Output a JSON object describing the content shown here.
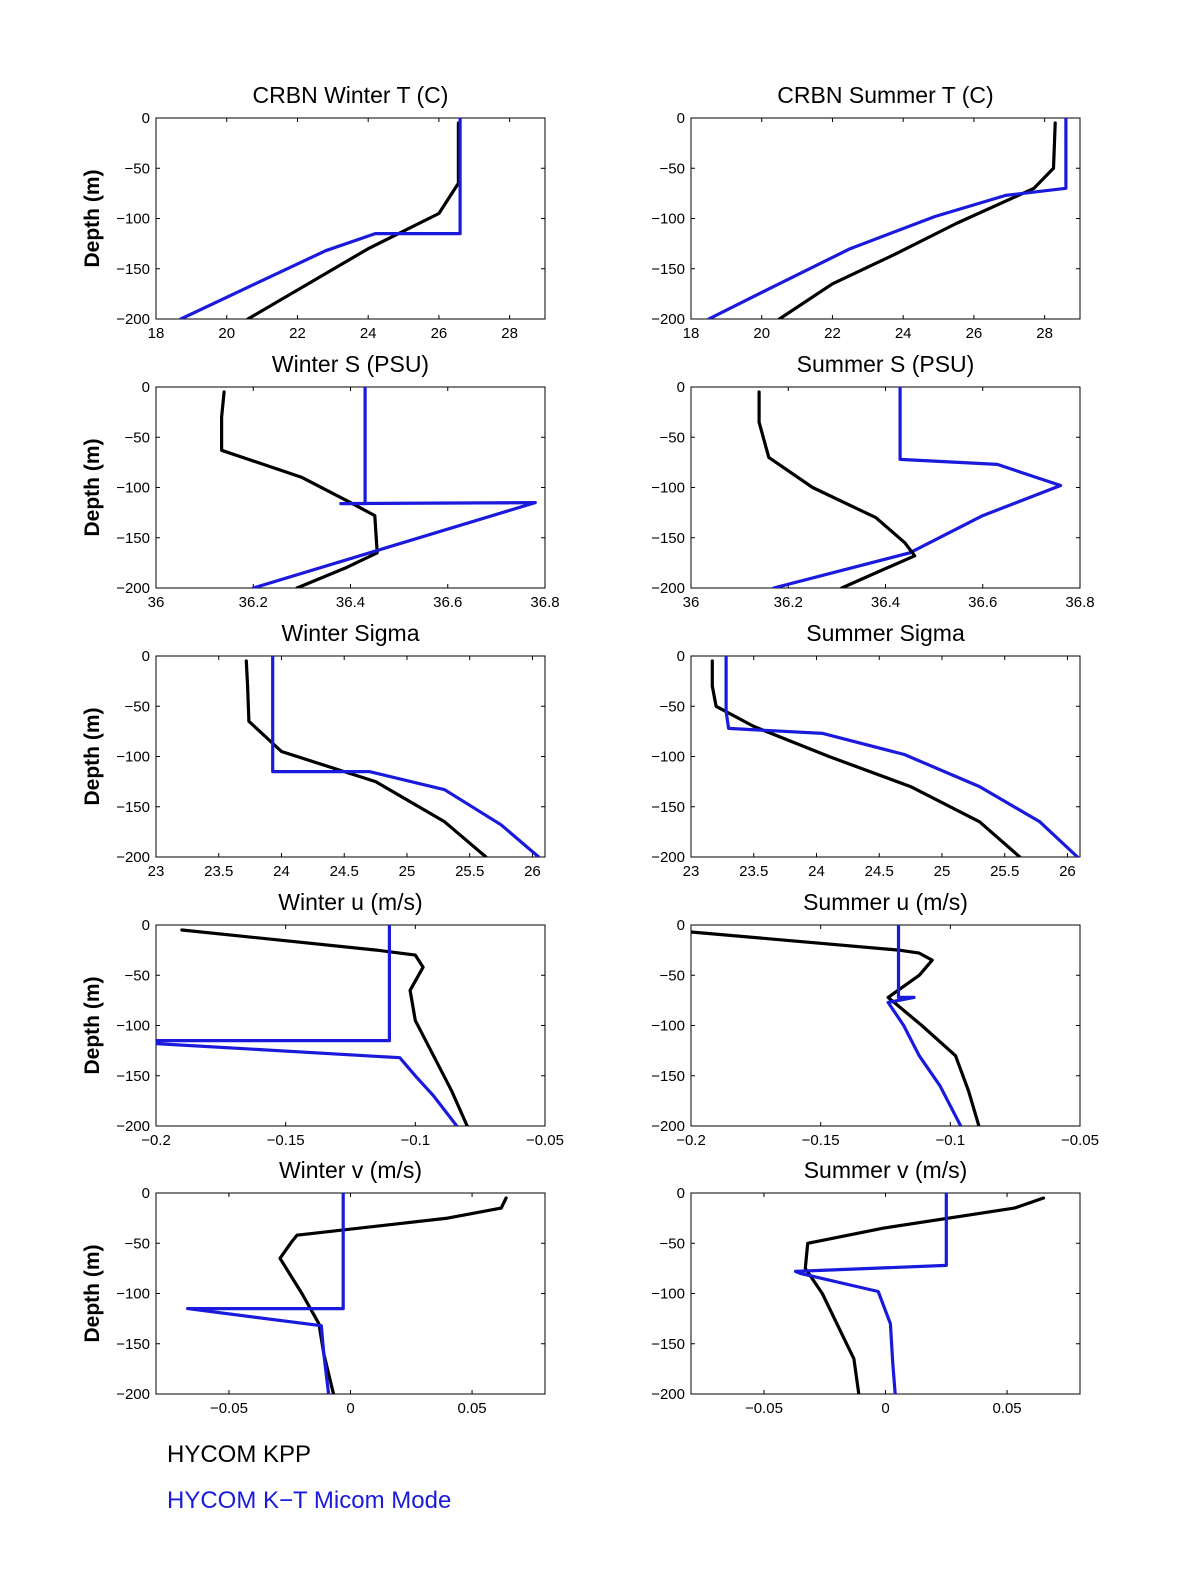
{
  "colors": {
    "kpp": "#000000",
    "micom": "#1a1adc",
    "axis": "#000000",
    "background": "#ffffff"
  },
  "legend": [
    {
      "label": "HYCOM KPP",
      "color": "#000000"
    },
    {
      "label": "HYCOM K−T Micom Mode",
      "color": "#1a1adc"
    }
  ],
  "chart_data": [
    {
      "type": "line",
      "title": "CRBN Winter T (C)",
      "ylabel": "Depth (m)",
      "xlim": [
        18,
        29
      ],
      "ylim": [
        -200,
        0
      ],
      "xticks": [
        18,
        20,
        22,
        24,
        26,
        28
      ],
      "xtick_labels": [
        "18",
        "20",
        "22",
        "24",
        "26",
        "28"
      ],
      "yticks": [
        0,
        -50,
        -100,
        -150,
        -200
      ],
      "ytick_labels": [
        "0",
        "−50",
        "−100",
        "−150",
        "−200"
      ],
      "series": [
        {
          "name": "HYCOM KPP",
          "color": "#000000",
          "x": [
            26.55,
            26.55,
            26.0,
            24.0,
            20.6
          ],
          "y": [
            -5,
            -65,
            -95,
            -130,
            -200
          ]
        },
        {
          "name": "HYCOM K−T Micom Mode",
          "color": "#1a1adc",
          "x": [
            26.6,
            26.6,
            24.2,
            22.8,
            20.5,
            18.7
          ],
          "y": [
            0,
            -115,
            -115,
            -132,
            -170,
            -200
          ]
        }
      ]
    },
    {
      "type": "line",
      "title": "CRBN Summer T (C)",
      "ylabel": "",
      "xlim": [
        18,
        29
      ],
      "ylim": [
        -200,
        0
      ],
      "xticks": [
        18,
        20,
        22,
        24,
        26,
        28
      ],
      "xtick_labels": [
        "18",
        "20",
        "22",
        "24",
        "26",
        "28"
      ],
      "yticks": [
        0,
        -50,
        -100,
        -150,
        -200
      ],
      "ytick_labels": [
        "0",
        "−50",
        "−100",
        "−150",
        "−200"
      ],
      "series": [
        {
          "name": "HYCOM KPP",
          "color": "#000000",
          "x": [
            28.3,
            28.25,
            27.7,
            25.5,
            23.8,
            22.0,
            20.5
          ],
          "y": [
            -5,
            -50,
            -70,
            -105,
            -135,
            -165,
            -200
          ]
        },
        {
          "name": "HYCOM K−T Micom Mode",
          "color": "#1a1adc",
          "x": [
            28.6,
            28.6,
            26.9,
            24.9,
            22.5,
            20.2,
            18.5
          ],
          "y": [
            0,
            -70,
            -77,
            -98,
            -130,
            -170,
            -200
          ]
        }
      ]
    },
    {
      "type": "line",
      "title": "Winter S (PSU)",
      "ylabel": "Depth (m)",
      "xlim": [
        36,
        36.8
      ],
      "ylim": [
        -200,
        0
      ],
      "xticks": [
        36,
        36.2,
        36.4,
        36.6,
        36.8
      ],
      "xtick_labels": [
        "36",
        "36.2",
        "36.4",
        "36.6",
        "36.8"
      ],
      "yticks": [
        0,
        -50,
        -100,
        -150,
        -200
      ],
      "ytick_labels": [
        "0",
        "−50",
        "−100",
        "−150",
        "−200"
      ],
      "series": [
        {
          "name": "HYCOM KPP",
          "color": "#000000",
          "x": [
            36.14,
            36.135,
            36.135,
            36.3,
            36.4,
            36.45,
            36.455,
            36.39,
            36.29
          ],
          "y": [
            -5,
            -30,
            -63,
            -90,
            -115,
            -128,
            -165,
            -180,
            -200
          ]
        },
        {
          "name": "HYCOM K−T Micom Mode",
          "color": "#1a1adc",
          "x": [
            36.43,
            36.43,
            36.38,
            36.78,
            36.2
          ],
          "y": [
            0,
            -116,
            -116,
            -115,
            -200
          ]
        }
      ]
    },
    {
      "type": "line",
      "title": "Summer S (PSU)",
      "ylabel": "",
      "xlim": [
        36,
        36.8
      ],
      "ylim": [
        -200,
        0
      ],
      "xticks": [
        36,
        36.2,
        36.4,
        36.6,
        36.8
      ],
      "xtick_labels": [
        "36",
        "36.2",
        "36.4",
        "36.6",
        "36.8"
      ],
      "yticks": [
        0,
        -50,
        -100,
        -150,
        -200
      ],
      "ytick_labels": [
        "0",
        "−50",
        "−100",
        "−150",
        "−200"
      ],
      "series": [
        {
          "name": "HYCOM K−T Micom Mode",
          "color": "#1a1adc",
          "x": [
            36.43,
            36.43,
            36.63,
            36.76,
            36.6,
            36.45,
            36.17
          ],
          "y": [
            0,
            -72,
            -77,
            -98,
            -128,
            -165,
            -200
          ]
        },
        {
          "name": "HYCOM KPP",
          "color": "#000000",
          "x": [
            36.14,
            36.14,
            36.16,
            36.25,
            36.38,
            36.44,
            36.46,
            36.38,
            36.31
          ],
          "y": [
            -5,
            -35,
            -70,
            -100,
            -130,
            -155,
            -168,
            -185,
            -200
          ]
        }
      ]
    },
    {
      "type": "line",
      "title": "Winter Sigma",
      "ylabel": "Depth (m)",
      "xlim": [
        23,
        26.1
      ],
      "ylim": [
        -200,
        0
      ],
      "xticks": [
        23,
        23.5,
        24,
        24.5,
        25,
        25.5,
        26
      ],
      "xtick_labels": [
        "23",
        "23.5",
        "24",
        "24.5",
        "25",
        "25.5",
        "26"
      ],
      "yticks": [
        0,
        -50,
        -100,
        -150,
        -200
      ],
      "ytick_labels": [
        "0",
        "−50",
        "−100",
        "−150",
        "−200"
      ],
      "series": [
        {
          "name": "HYCOM KPP",
          "color": "#000000",
          "x": [
            23.72,
            23.73,
            23.74,
            24.0,
            24.5,
            24.75,
            25.3,
            25.63
          ],
          "y": [
            -5,
            -30,
            -65,
            -95,
            -115,
            -125,
            -165,
            -200
          ]
        },
        {
          "name": "HYCOM K−T Micom Mode",
          "color": "#1a1adc",
          "x": [
            23.93,
            23.93,
            24.7,
            25.3,
            25.75,
            26.05
          ],
          "y": [
            0,
            -115,
            -115,
            -133,
            -168,
            -200
          ]
        }
      ]
    },
    {
      "type": "line",
      "title": "Summer Sigma",
      "ylabel": "",
      "xlim": [
        23,
        26.1
      ],
      "ylim": [
        -200,
        0
      ],
      "xticks": [
        23,
        23.5,
        24,
        24.5,
        25,
        25.5,
        26
      ],
      "xtick_labels": [
        "23",
        "23.5",
        "24",
        "24.5",
        "25",
        "25.5",
        "26"
      ],
      "yticks": [
        0,
        -50,
        -100,
        -150,
        -200
      ],
      "ytick_labels": [
        "0",
        "−50",
        "−100",
        "−150",
        "−200"
      ],
      "series": [
        {
          "name": "HYCOM KPP",
          "color": "#000000",
          "x": [
            23.17,
            23.17,
            23.2,
            23.5,
            24.1,
            24.75,
            25.3,
            25.62
          ],
          "y": [
            -5,
            -30,
            -50,
            -70,
            -100,
            -130,
            -165,
            -200
          ]
        },
        {
          "name": "HYCOM K−T Micom Mode",
          "color": "#1a1adc",
          "x": [
            23.28,
            23.28,
            23.3,
            24.05,
            24.7,
            25.3,
            25.78,
            26.08
          ],
          "y": [
            0,
            -55,
            -72,
            -77,
            -98,
            -130,
            -165,
            -200
          ]
        }
      ]
    },
    {
      "type": "line",
      "title": "Winter u (m/s)",
      "ylabel": "Depth (m)",
      "xlim": [
        -0.2,
        -0.05
      ],
      "ylim": [
        -200,
        0
      ],
      "xticks": [
        -0.2,
        -0.15,
        -0.1,
        -0.05
      ],
      "xtick_labels": [
        "−0.2",
        "−0.15",
        "−0.1",
        "−0.05"
      ],
      "yticks": [
        0,
        -50,
        -100,
        -150,
        -200
      ],
      "ytick_labels": [
        "0",
        "−50",
        "−100",
        "−150",
        "−200"
      ],
      "series": [
        {
          "name": "HYCOM KPP",
          "color": "#000000",
          "x": [
            -0.19,
            -0.115,
            -0.1,
            -0.097,
            -0.102,
            -0.1,
            -0.093,
            -0.086,
            -0.08
          ],
          "y": [
            -5,
            -25,
            -30,
            -42,
            -65,
            -95,
            -130,
            -165,
            -200
          ]
        },
        {
          "name": "HYCOM K−T Micom Mode",
          "color": "#1a1adc",
          "x": [
            -0.11,
            -0.11,
            -0.2,
            -0.2,
            -0.106,
            -0.1,
            -0.093,
            -0.084
          ],
          "y": [
            0,
            -115,
            -115,
            -118,
            -132,
            -150,
            -170,
            -200
          ]
        }
      ]
    },
    {
      "type": "line",
      "title": "Summer u (m/s)",
      "ylabel": "",
      "xlim": [
        -0.2,
        -0.05
      ],
      "ylim": [
        -200,
        0
      ],
      "xticks": [
        -0.2,
        -0.15,
        -0.1,
        -0.05
      ],
      "xtick_labels": [
        "−0.2",
        "−0.15",
        "−0.1",
        "−0.05"
      ],
      "yticks": [
        0,
        -50,
        -100,
        -150,
        -200
      ],
      "ytick_labels": [
        "0",
        "−50",
        "−100",
        "−150",
        "−200"
      ],
      "series": [
        {
          "name": "HYCOM KPP",
          "color": "#000000",
          "x": [
            -0.2,
            -0.12,
            -0.112,
            -0.107,
            -0.112,
            -0.124,
            -0.118,
            -0.111,
            -0.098,
            -0.093,
            -0.089
          ],
          "y": [
            -7,
            -25,
            -28,
            -35,
            -50,
            -72,
            -85,
            -100,
            -130,
            -165,
            -200
          ]
        },
        {
          "name": "HYCOM K−T Micom Mode",
          "color": "#1a1adc",
          "x": [
            -0.12,
            -0.12,
            -0.114,
            -0.12,
            -0.124,
            -0.118,
            -0.112,
            -0.104,
            -0.096
          ],
          "y": [
            0,
            -72,
            -72,
            -75,
            -77,
            -100,
            -130,
            -160,
            -200
          ]
        }
      ]
    },
    {
      "type": "line",
      "title": "Winter v (m/s)",
      "ylabel": "Depth (m)",
      "xlim": [
        -0.08,
        0.08
      ],
      "ylim": [
        -200,
        0
      ],
      "xticks": [
        -0.05,
        0,
        0.05
      ],
      "xtick_labels": [
        "−0.05",
        "0",
        "0.05"
      ],
      "yticks": [
        0,
        -50,
        -100,
        -150,
        -200
      ],
      "ytick_labels": [
        "0",
        "−50",
        "−100",
        "−150",
        "−200"
      ],
      "series": [
        {
          "name": "HYCOM KPP",
          "color": "#000000",
          "x": [
            0.064,
            0.062,
            0.04,
            -0.022,
            -0.024,
            -0.029,
            -0.02,
            -0.013,
            -0.011,
            -0.007
          ],
          "y": [
            -5,
            -15,
            -25,
            -42,
            -48,
            -65,
            -100,
            -130,
            -160,
            -200
          ]
        },
        {
          "name": "HYCOM K−T Micom Mode",
          "color": "#1a1adc",
          "x": [
            -0.003,
            -0.003,
            -0.067,
            -0.012,
            -0.011,
            -0.009
          ],
          "y": [
            0,
            -115,
            -115,
            -132,
            -160,
            -200
          ]
        }
      ]
    },
    {
      "type": "line",
      "title": "Summer v (m/s)",
      "ylabel": "",
      "xlim": [
        -0.08,
        0.08
      ],
      "ylim": [
        -200,
        0
      ],
      "xticks": [
        -0.05,
        0,
        0.05
      ],
      "xtick_labels": [
        "−0.05",
        "0",
        "0.05"
      ],
      "yticks": [
        0,
        -50,
        -100,
        -150,
        -200
      ],
      "ytick_labels": [
        "0",
        "−50",
        "−100",
        "−150",
        "−200"
      ],
      "series": [
        {
          "name": "HYCOM KPP",
          "color": "#000000",
          "x": [
            0.065,
            0.053,
            -0.001,
            -0.032,
            -0.033,
            -0.026,
            -0.018,
            -0.013,
            -0.011
          ],
          "y": [
            -5,
            -15,
            -35,
            -50,
            -75,
            -100,
            -140,
            -165,
            -200
          ]
        },
        {
          "name": "HYCOM K−T Micom Mode",
          "color": "#1a1adc",
          "x": [
            0.025,
            0.025,
            -0.037,
            -0.035,
            -0.003,
            0.002,
            0.003,
            0.004
          ],
          "y": [
            0,
            -72,
            -78,
            -80,
            -98,
            -130,
            -170,
            -200
          ]
        }
      ]
    }
  ]
}
